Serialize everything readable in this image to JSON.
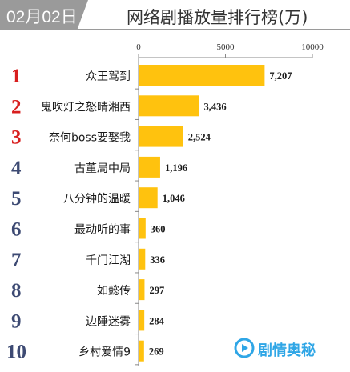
{
  "header": {
    "date": "02月02日",
    "title": "网络剧播放量排行榜(万)"
  },
  "watermark": {
    "text": "剧情奥秘",
    "icon": "play-icon"
  },
  "colors": {
    "bar": "#ffc20e",
    "rank_top3": "#d81e1e",
    "rank_rest": "#3d4a73",
    "header_gray": "#9a9a9a"
  },
  "chart_data": {
    "type": "bar",
    "orientation": "horizontal",
    "title": "网络剧播放量排行榜(万)",
    "xlim": [
      0,
      10000
    ],
    "x_ticks": [
      "0",
      "5000",
      "10000"
    ],
    "categories": [
      "众王驾到",
      "鬼吹灯之怒晴湘西",
      "奈何boss要娶我",
      "古董局中局",
      "八分钟的温暖",
      "最动听的事",
      "千门江湖",
      "如懿传",
      "边陲迷雾",
      "乡村爱情9"
    ],
    "ranks": [
      "1",
      "2",
      "3",
      "4",
      "5",
      "6",
      "7",
      "8",
      "9",
      "10"
    ],
    "values": [
      7207,
      3436,
      2524,
      1196,
      1046,
      360,
      336,
      297,
      284,
      269
    ],
    "value_labels": [
      "7,207",
      "3,436",
      "2,524",
      "1,196",
      "1,046",
      "360",
      "336",
      "297",
      "284",
      "269"
    ]
  }
}
